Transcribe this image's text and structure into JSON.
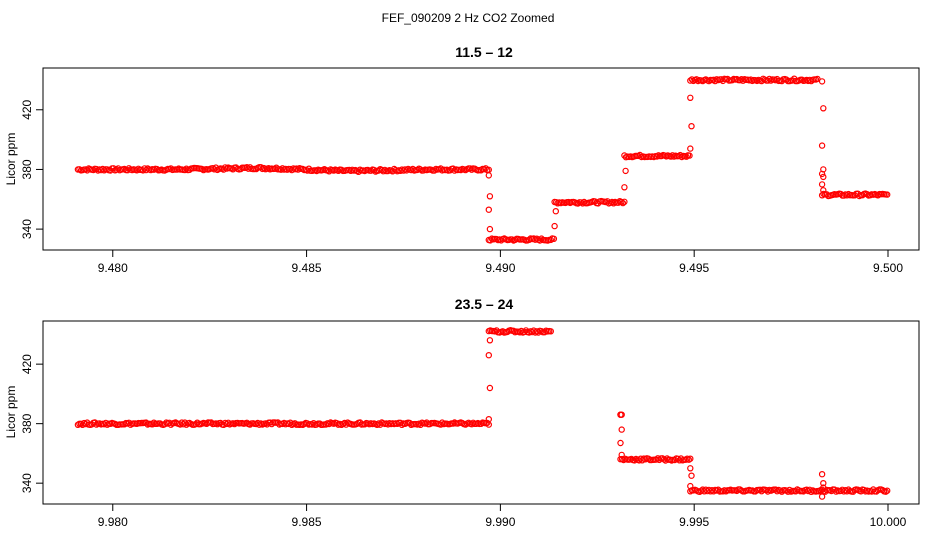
{
  "figure": {
    "title": "FEF_090209  2 Hz CO2 Zoomed"
  },
  "chart_data": [
    {
      "type": "scatter",
      "title": "11.5 – 12",
      "xlabel": "",
      "ylabel": "Licor ppm",
      "xlim": [
        9.4782,
        9.5008
      ],
      "ylim": [
        326,
        448
      ],
      "xticks": [
        "9.480",
        "9.485",
        "9.490",
        "9.495",
        "9.500"
      ],
      "yticks": [
        "340",
        "380",
        "420"
      ],
      "grid": false,
      "marker": "open-circle",
      "color": "#ff0000",
      "segments": [
        {
          "x0": 9.4791,
          "x1": 9.4897,
          "y": 380,
          "wobble": [
            [
              9.4837,
              381
            ],
            [
              9.4862,
              379
            ]
          ]
        },
        {
          "x0": 9.4897,
          "x1": 9.4914,
          "y": 333
        },
        {
          "x0": 9.4914,
          "x1": 9.4932,
          "y": 358
        },
        {
          "x0": 9.4932,
          "x1": 9.4949,
          "y": 389
        },
        {
          "x0": 9.4949,
          "x1": 9.4982,
          "y": 440
        },
        {
          "x0": 9.4983,
          "x1": 9.5,
          "y": 363
        }
      ],
      "transitions": [
        {
          "x": 9.4897,
          "y": [
            376,
            362,
            353,
            340
          ]
        },
        {
          "x": 9.4914,
          "y": [
            342,
            352
          ]
        },
        {
          "x": 9.4932,
          "y": [
            368,
            379
          ]
        },
        {
          "x": 9.4949,
          "y": [
            394,
            409,
            428
          ]
        },
        {
          "x": 9.4983,
          "y": [
            439,
            421,
            396,
            380,
            377,
            375,
            370,
            366
          ]
        }
      ]
    },
    {
      "type": "scatter",
      "title": "23.5 – 24",
      "xlabel": "",
      "ylabel": "Licor ppm",
      "xlim": [
        9.9782,
        10.0008
      ],
      "ylim": [
        326,
        449
      ],
      "xticks": [
        "9.980",
        "9.985",
        "9.990",
        "9.995",
        "10.000"
      ],
      "yticks": [
        "340",
        "380",
        "420"
      ],
      "grid": false,
      "marker": "open-circle",
      "color": "#ff0000",
      "segments": [
        {
          "x0": 9.9791,
          "x1": 9.9897,
          "y": 380
        },
        {
          "x0": 9.9897,
          "x1": 9.9913,
          "y": 442
        },
        {
          "x0": 9.9931,
          "x1": 9.9949,
          "y": 356
        },
        {
          "x0": 9.9949,
          "x1": 10.0,
          "y": 335
        }
      ],
      "transitions": [
        {
          "x": 9.9897,
          "y": [
            383,
            404,
            426,
            436
          ]
        },
        {
          "x": 9.9931,
          "y": [
            386,
            386,
            386,
            376,
            367,
            359
          ]
        },
        {
          "x": 9.9949,
          "y": [
            350,
            345,
            338
          ]
        },
        {
          "x": 9.9983,
          "y": [
            346,
            337,
            331,
            340
          ]
        }
      ]
    }
  ]
}
